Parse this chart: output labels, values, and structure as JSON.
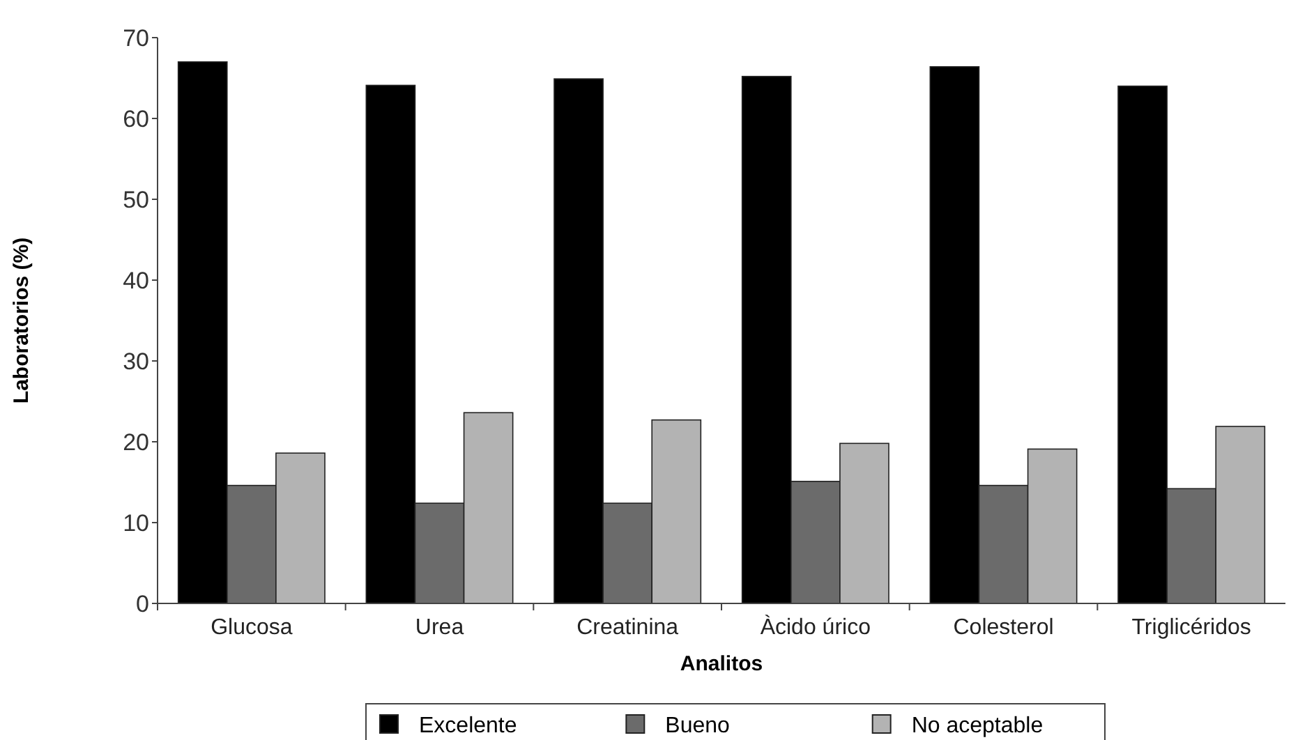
{
  "chart_data": {
    "type": "bar",
    "xlabel": "Analitos",
    "ylabel": "Laboratorios (%)",
    "categories": [
      "Glucosa",
      "Urea",
      "Creatinina",
      "Àcido úrico",
      "Colesterol",
      "Triglicéridos"
    ],
    "series": [
      {
        "name": "Excelente",
        "color": "#000000",
        "values": [
          67,
          64.1,
          64.9,
          65.2,
          66.4,
          64
        ]
      },
      {
        "name": "Bueno",
        "color": "#6b6b6b",
        "values": [
          14.6,
          12.4,
          12.4,
          15.1,
          14.6,
          14.2
        ]
      },
      {
        "name": "No aceptable",
        "color": "#b3b3b3",
        "values": [
          18.6,
          23.6,
          22.7,
          19.8,
          19.1,
          21.9
        ]
      }
    ],
    "ylim": [
      0,
      70
    ],
    "yticks": [
      0,
      10,
      20,
      30,
      40,
      50,
      60,
      70
    ],
    "grid": false,
    "legend": "bottom"
  }
}
